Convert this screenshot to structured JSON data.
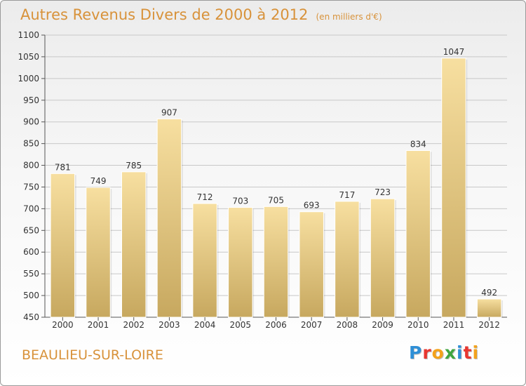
{
  "chart_data": {
    "type": "bar",
    "title": "Autres Revenus Divers de 2000 à 2012",
    "subtitle": "(en milliers d'€)",
    "categories": [
      "2000",
      "2001",
      "2002",
      "2003",
      "2004",
      "2005",
      "2006",
      "2007",
      "2008",
      "2009",
      "2010",
      "2011",
      "2012"
    ],
    "values": [
      781,
      749,
      785,
      907,
      712,
      703,
      705,
      693,
      717,
      723,
      834,
      1047,
      492
    ],
    "data_labels": [
      "781",
      "749",
      "785",
      "907",
      "712",
      "703",
      "705",
      "693",
      "717",
      "723",
      "834",
      "1047",
      "492"
    ],
    "ylim": [
      450,
      1100
    ],
    "yticks": [
      450,
      500,
      550,
      600,
      650,
      700,
      750,
      800,
      850,
      900,
      950,
      1000,
      1050,
      1100
    ],
    "grid": true,
    "bar_color": "#e8c878"
  },
  "location": "BEAULIEU-SUR-LOIRE",
  "brand": {
    "letters": [
      {
        "char": "P",
        "color": "#2f8fd6"
      },
      {
        "char": "r",
        "color": "#e8362f"
      },
      {
        "char": "o",
        "color": "#f3a21b"
      },
      {
        "char": "x",
        "color": "#3fa53f"
      },
      {
        "char": "i",
        "color": "#2f8fd6"
      },
      {
        "char": "t",
        "color": "#e8362f"
      },
      {
        "char": "i",
        "color": "#f3a21b"
      }
    ]
  },
  "colors": {
    "accent_text": "#d8923a",
    "grid": "#c8c8c8",
    "bar_light": "#f7dfa0",
    "bar_dark": "#c7a85f"
  }
}
